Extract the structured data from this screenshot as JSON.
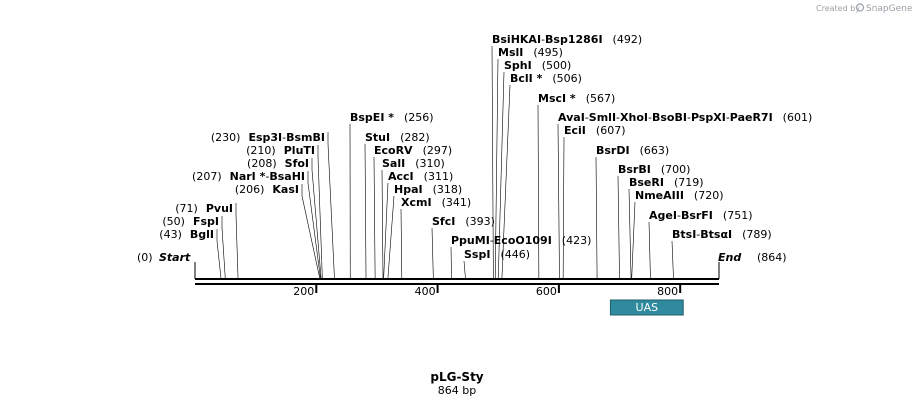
{
  "brand": {
    "prefix": "Created by",
    "name": "SnapGene"
  },
  "plasmid": {
    "name": "pLG-Sty",
    "length_label": "864 bp",
    "length": 864
  },
  "ends": {
    "start": {
      "label": "Start",
      "pos_label": "(0)",
      "position": 0
    },
    "end": {
      "label": "End",
      "pos_label": "(864)",
      "position": 864
    }
  },
  "ruler": {
    "ticks": [
      {
        "value": 200,
        "label": "200"
      },
      {
        "value": 400,
        "label": "400"
      },
      {
        "value": 600,
        "label": "600"
      },
      {
        "value": 800,
        "label": "800"
      }
    ]
  },
  "features": [
    {
      "name": "UAS",
      "start": 685,
      "end": 805,
      "color": "#2e8a9c"
    }
  ],
  "sites": [
    {
      "position": 43,
      "pos_label": "(43)",
      "enzymes": [
        "BglI"
      ],
      "side": "left"
    },
    {
      "position": 50,
      "pos_label": "(50)",
      "enzymes": [
        "FspI"
      ],
      "side": "left"
    },
    {
      "position": 71,
      "pos_label": "(71)",
      "enzymes": [
        "PvuI"
      ],
      "side": "left"
    },
    {
      "position": 206,
      "pos_label": "(206)",
      "enzymes": [
        "KasI"
      ],
      "side": "left"
    },
    {
      "position": 207,
      "pos_label": "(207)",
      "enzymes": [
        "NarI *",
        "BsaHI"
      ],
      "side": "left"
    },
    {
      "position": 208,
      "pos_label": "(208)",
      "enzymes": [
        "SfoI"
      ],
      "side": "left"
    },
    {
      "position": 210,
      "pos_label": "(210)",
      "enzymes": [
        "PluTI"
      ],
      "side": "left"
    },
    {
      "position": 230,
      "pos_label": "(230)",
      "enzymes": [
        "Esp3I",
        "BsmBI"
      ],
      "side": "left"
    },
    {
      "position": 256,
      "pos_label": "(256)",
      "enzymes": [
        "BspEI *"
      ],
      "side": "right"
    },
    {
      "position": 282,
      "pos_label": "(282)",
      "enzymes": [
        "StuI"
      ],
      "side": "right"
    },
    {
      "position": 297,
      "pos_label": "(297)",
      "enzymes": [
        "EcoRV"
      ],
      "side": "right"
    },
    {
      "position": 310,
      "pos_label": "(310)",
      "enzymes": [
        "SalI"
      ],
      "side": "right"
    },
    {
      "position": 311,
      "pos_label": "(311)",
      "enzymes": [
        "AccI"
      ],
      "side": "right"
    },
    {
      "position": 318,
      "pos_label": "(318)",
      "enzymes": [
        "HpaI"
      ],
      "side": "right"
    },
    {
      "position": 341,
      "pos_label": "(341)",
      "enzymes": [
        "XcmI"
      ],
      "side": "right"
    },
    {
      "position": 393,
      "pos_label": "(393)",
      "enzymes": [
        "SfcI"
      ],
      "side": "right"
    },
    {
      "position": 423,
      "pos_label": "(423)",
      "enzymes": [
        "PpuMI",
        "EcoO109I"
      ],
      "side": "right"
    },
    {
      "position": 446,
      "pos_label": "(446)",
      "enzymes": [
        "SspI"
      ],
      "side": "right"
    },
    {
      "position": 492,
      "pos_label": "(492)",
      "enzymes": [
        "BsiHKAI",
        "Bsp1286I"
      ],
      "side": "right"
    },
    {
      "position": 495,
      "pos_label": "(495)",
      "enzymes": [
        "MslI"
      ],
      "side": "right"
    },
    {
      "position": 500,
      "pos_label": "(500)",
      "enzymes": [
        "SphI"
      ],
      "side": "right"
    },
    {
      "position": 506,
      "pos_label": "(506)",
      "enzymes": [
        "BclI *"
      ],
      "side": "right"
    },
    {
      "position": 567,
      "pos_label": "(567)",
      "enzymes": [
        "MscI *"
      ],
      "side": "right"
    },
    {
      "position": 601,
      "pos_label": "(601)",
      "enzymes": [
        "AvaI",
        "SmlI",
        "XhoI",
        "BsoBI",
        "PspXI",
        "PaeR7I"
      ],
      "side": "right"
    },
    {
      "position": 607,
      "pos_label": "(607)",
      "enzymes": [
        "EciI"
      ],
      "side": "right"
    },
    {
      "position": 663,
      "pos_label": "(663)",
      "enzymes": [
        "BsrDI"
      ],
      "side": "right"
    },
    {
      "position": 700,
      "pos_label": "(700)",
      "enzymes": [
        "BsrBI"
      ],
      "side": "right"
    },
    {
      "position": 719,
      "pos_label": "(719)",
      "enzymes": [
        "BseRI"
      ],
      "side": "right"
    },
    {
      "position": 720,
      "pos_label": "(720)",
      "enzymes": [
        "NmeAIII"
      ],
      "side": "right"
    },
    {
      "position": 751,
      "pos_label": "(751)",
      "enzymes": [
        "AgeI",
        "BsrFI"
      ],
      "side": "right"
    },
    {
      "position": 789,
      "pos_label": "(789)",
      "enzymes": [
        "BtsI",
        "BtsαI"
      ],
      "side": "right"
    }
  ]
}
